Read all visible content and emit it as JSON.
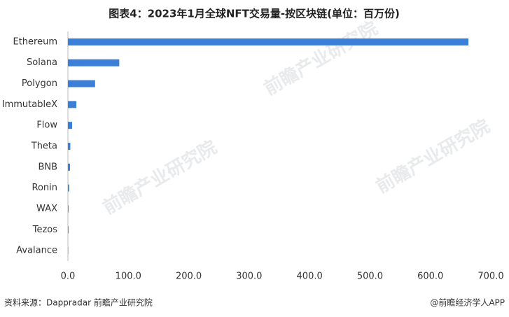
{
  "chart_data": {
    "type": "hbar",
    "title": "图表4：2023年1月全球NFT交易量-按区块链(单位：百万份)",
    "categories": [
      "Ethereum",
      "Solana",
      "Polygon",
      "ImmutableX",
      "Flow",
      "Theta",
      "BNB",
      "Ronin",
      "WAX",
      "Tezos",
      "Avalance"
    ],
    "values": [
      663,
      85,
      45,
      14,
      7,
      4,
      3.5,
      2,
      1,
      1,
      0.5
    ],
    "color": "#3c7fd9",
    "xlim": [
      0,
      700
    ],
    "xticks": [
      {
        "value": 0,
        "label": "0.0"
      },
      {
        "value": 100,
        "label": "100.0"
      },
      {
        "value": 200,
        "label": "200.0"
      },
      {
        "value": 300,
        "label": "300.0"
      },
      {
        "value": 400,
        "label": "400.0"
      },
      {
        "value": 500,
        "label": "500.0"
      },
      {
        "value": 600,
        "label": "600.0"
      },
      {
        "value": 700,
        "label": "700.0"
      }
    ],
    "grid": false
  },
  "footer": {
    "source": "资料来源：Dappradar 前瞻产业研究院",
    "credit": "@前瞻经济学人APP"
  },
  "watermark": "前瞻产业研究院"
}
